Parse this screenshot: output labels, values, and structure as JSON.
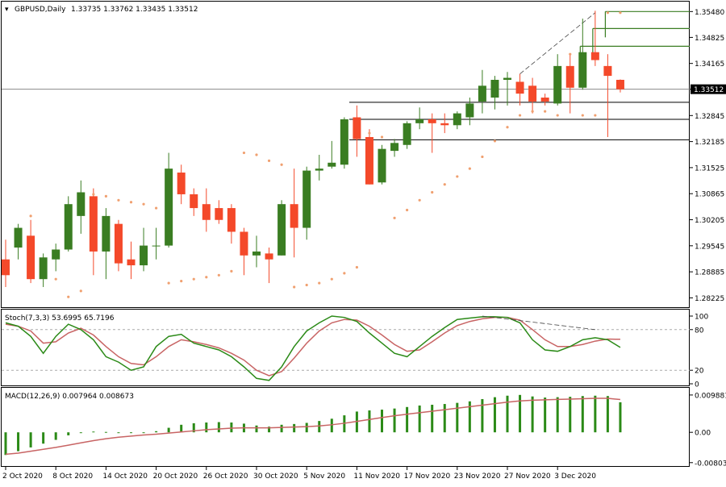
{
  "header": {
    "symbol": "GBPUSD,Daily",
    "ohlc": "1.33735 1.33762 1.33435 1.33512"
  },
  "colors": {
    "bull": "#3a7d22",
    "bear": "#f4492a",
    "sar": "#f0a070",
    "level": "#3a7d22",
    "hline": "#000000",
    "stoch_main": "#2b8a17",
    "stoch_signal": "#c86464",
    "macd_hist": "#2b8a17",
    "macd_signal": "#c86464"
  },
  "chart_data": [
    {
      "type": "candlestick",
      "panel": "price",
      "ylim": [
        1.2805,
        1.3565
      ],
      "yticks": [
        "1.35480",
        "1.34825",
        "1.34165",
        "1.33512",
        "1.32845",
        "1.32185",
        "1.31525",
        "1.30865",
        "1.30205",
        "1.29545",
        "1.28885",
        "1.28225"
      ],
      "current_price": "1.33512",
      "candles": [
        {
          "o": 1.292,
          "h": 1.297,
          "l": 1.285,
          "c": 1.288
        },
        {
          "o": 1.295,
          "h": 1.301,
          "l": 1.292,
          "c": 1.3
        },
        {
          "o": 1.298,
          "h": 1.302,
          "l": 1.286,
          "c": 1.287
        },
        {
          "o": 1.287,
          "h": 1.2935,
          "l": 1.285,
          "c": 1.2925
        },
        {
          "o": 1.292,
          "h": 1.296,
          "l": 1.289,
          "c": 1.2945
        },
        {
          "o": 1.2945,
          "h": 1.308,
          "l": 1.294,
          "c": 1.306
        },
        {
          "o": 1.303,
          "h": 1.312,
          "l": 1.2985,
          "c": 1.309
        },
        {
          "o": 1.308,
          "h": 1.31,
          "l": 1.288,
          "c": 1.294
        },
        {
          "o": 1.294,
          "h": 1.305,
          "l": 1.287,
          "c": 1.303
        },
        {
          "o": 1.301,
          "h": 1.302,
          "l": 1.289,
          "c": 1.291
        },
        {
          "o": 1.292,
          "h": 1.2965,
          "l": 1.287,
          "c": 1.2905
        },
        {
          "o": 1.2905,
          "h": 1.3,
          "l": 1.289,
          "c": 1.2955
        },
        {
          "o": 1.2955,
          "h": 1.3,
          "l": 1.292,
          "c": 1.2955
        },
        {
          "o": 1.2955,
          "h": 1.319,
          "l": 1.295,
          "c": 1.315
        },
        {
          "o": 1.314,
          "h": 1.316,
          "l": 1.306,
          "c": 1.3085
        },
        {
          "o": 1.3085,
          "h": 1.31,
          "l": 1.303,
          "c": 1.305
        },
        {
          "o": 1.306,
          "h": 1.31,
          "l": 1.299,
          "c": 1.302
        },
        {
          "o": 1.305,
          "h": 1.307,
          "l": 1.301,
          "c": 1.302
        },
        {
          "o": 1.305,
          "h": 1.306,
          "l": 1.296,
          "c": 1.299
        },
        {
          "o": 1.299,
          "h": 1.3,
          "l": 1.288,
          "c": 1.293
        },
        {
          "o": 1.293,
          "h": 1.298,
          "l": 1.29,
          "c": 1.294
        },
        {
          "o": 1.2935,
          "h": 1.295,
          "l": 1.286,
          "c": 1.292
        },
        {
          "o": 1.293,
          "h": 1.307,
          "l": 1.293,
          "c": 1.306
        },
        {
          "o": 1.306,
          "h": 1.315,
          "l": 1.2925,
          "c": 1.3
        },
        {
          "o": 1.3,
          "h": 1.3155,
          "l": 1.297,
          "c": 1.3145
        },
        {
          "o": 1.3145,
          "h": 1.3185,
          "l": 1.312,
          "c": 1.315
        },
        {
          "o": 1.3155,
          "h": 1.322,
          "l": 1.315,
          "c": 1.3165
        },
        {
          "o": 1.316,
          "h": 1.328,
          "l": 1.315,
          "c": 1.3275
        },
        {
          "o": 1.328,
          "h": 1.331,
          "l": 1.318,
          "c": 1.3225
        },
        {
          "o": 1.323,
          "h": 1.325,
          "l": 1.311,
          "c": 1.311
        },
        {
          "o": 1.3115,
          "h": 1.321,
          "l": 1.311,
          "c": 1.32
        },
        {
          "o": 1.3195,
          "h": 1.3225,
          "l": 1.318,
          "c": 1.3215
        },
        {
          "o": 1.321,
          "h": 1.327,
          "l": 1.32,
          "c": 1.3265
        },
        {
          "o": 1.3265,
          "h": 1.3305,
          "l": 1.325,
          "c": 1.3275
        },
        {
          "o": 1.3275,
          "h": 1.329,
          "l": 1.319,
          "c": 1.3265
        },
        {
          "o": 1.3265,
          "h": 1.329,
          "l": 1.324,
          "c": 1.326
        },
        {
          "o": 1.326,
          "h": 1.3295,
          "l": 1.325,
          "c": 1.329
        },
        {
          "o": 1.328,
          "h": 1.333,
          "l": 1.326,
          "c": 1.3315
        },
        {
          "o": 1.332,
          "h": 1.34,
          "l": 1.329,
          "c": 1.336
        },
        {
          "o": 1.333,
          "h": 1.3385,
          "l": 1.33,
          "c": 1.3375
        },
        {
          "o": 1.3375,
          "h": 1.3395,
          "l": 1.331,
          "c": 1.338
        },
        {
          "o": 1.337,
          "h": 1.339,
          "l": 1.331,
          "c": 1.334
        },
        {
          "o": 1.336,
          "h": 1.338,
          "l": 1.329,
          "c": 1.332
        },
        {
          "o": 1.333,
          "h": 1.334,
          "l": 1.331,
          "c": 1.332
        },
        {
          "o": 1.3315,
          "h": 1.344,
          "l": 1.331,
          "c": 1.341
        },
        {
          "o": 1.341,
          "h": 1.344,
          "l": 1.329,
          "c": 1.3355
        },
        {
          "o": 1.3355,
          "h": 1.353,
          "l": 1.335,
          "c": 1.3445
        },
        {
          "o": 1.3445,
          "h": 1.355,
          "l": 1.341,
          "c": 1.3425
        },
        {
          "o": 1.341,
          "h": 1.344,
          "l": 1.323,
          "c": 1.3385
        },
        {
          "o": 1.3375,
          "h": 1.3376,
          "l": 1.3343,
          "c": 1.3351
        }
      ],
      "sar": [
        {
          "i": 2,
          "v": 1.303
        },
        {
          "i": 4,
          "v": 1.287
        },
        {
          "i": 5,
          "v": 1.2825
        },
        {
          "i": 6,
          "v": 1.284
        },
        {
          "i": 7,
          "v": 1.3085
        },
        {
          "i": 8,
          "v": 1.308
        },
        {
          "i": 9,
          "v": 1.307
        },
        {
          "i": 10,
          "v": 1.3065
        },
        {
          "i": 11,
          "v": 1.306
        },
        {
          "i": 12,
          "v": 1.305
        },
        {
          "i": 13,
          "v": 1.286
        },
        {
          "i": 14,
          "v": 1.2865
        },
        {
          "i": 15,
          "v": 1.287
        },
        {
          "i": 16,
          "v": 1.2875
        },
        {
          "i": 17,
          "v": 1.288
        },
        {
          "i": 18,
          "v": 1.289
        },
        {
          "i": 19,
          "v": 1.319
        },
        {
          "i": 20,
          "v": 1.3185
        },
        {
          "i": 21,
          "v": 1.317
        },
        {
          "i": 22,
          "v": 1.316
        },
        {
          "i": 23,
          "v": 1.285
        },
        {
          "i": 24,
          "v": 1.2855
        },
        {
          "i": 25,
          "v": 1.286
        },
        {
          "i": 26,
          "v": 1.287
        },
        {
          "i": 27,
          "v": 1.2885
        },
        {
          "i": 28,
          "v": 1.29
        },
        {
          "i": 29,
          "v": 1.324
        },
        {
          "i": 30,
          "v": 1.323
        },
        {
          "i": 31,
          "v": 1.3025
        },
        {
          "i": 32,
          "v": 1.3045
        },
        {
          "i": 33,
          "v": 1.307
        },
        {
          "i": 34,
          "v": 1.309
        },
        {
          "i": 35,
          "v": 1.311
        },
        {
          "i": 36,
          "v": 1.313
        },
        {
          "i": 37,
          "v": 1.315
        },
        {
          "i": 38,
          "v": 1.318
        },
        {
          "i": 39,
          "v": 1.322
        },
        {
          "i": 40,
          "v": 1.3255
        },
        {
          "i": 41,
          "v": 1.3285
        },
        {
          "i": 42,
          "v": 1.3295
        },
        {
          "i": 43,
          "v": 1.3295
        },
        {
          "i": 44,
          "v": 1.3285
        },
        {
          "i": 45,
          "v": 1.344
        },
        {
          "i": 46,
          "v": 1.3285
        },
        {
          "i": 47,
          "v": 1.3285
        },
        {
          "i": 48,
          "v": 1.3545
        },
        {
          "i": 49,
          "v": 1.3545
        }
      ],
      "hlines": [
        1.3318,
        1.3275,
        1.3223
      ],
      "green_levels": [
        {
          "start": 48,
          "value": 1.3548
        },
        {
          "start": 47,
          "value": 1.3505
        },
        {
          "start": 46,
          "value": 1.346
        }
      ],
      "trendline": {
        "from": {
          "i": 41,
          "v": 1.339
        },
        "to": {
          "i": 47,
          "v": 1.3545
        }
      }
    },
    {
      "type": "line",
      "panel": "stochastic",
      "label": "Stoch(7,3,3) 53.6995 65.7196",
      "ylim": [
        0,
        100
      ],
      "yticks": [
        "100",
        "80",
        "20",
        "0"
      ],
      "levels": [
        80,
        20
      ],
      "series": [
        {
          "values": [
            90,
            85,
            70,
            45,
            70,
            88,
            80,
            65,
            40,
            32,
            20,
            25,
            55,
            70,
            73,
            60,
            55,
            50,
            40,
            25,
            8,
            5,
            25,
            55,
            78,
            90,
            100,
            98,
            92,
            75,
            60,
            45,
            40,
            55,
            70,
            83,
            95,
            97,
            99,
            99,
            98,
            90,
            65,
            50,
            48,
            55,
            65,
            68,
            65,
            53.7
          ]
        },
        {
          "values": [
            88,
            85,
            78,
            60,
            62,
            75,
            82,
            72,
            55,
            40,
            30,
            28,
            40,
            55,
            65,
            62,
            58,
            53,
            45,
            35,
            20,
            12,
            18,
            38,
            60,
            78,
            90,
            95,
            94,
            85,
            72,
            58,
            48,
            50,
            62,
            75,
            86,
            92,
            96,
            98,
            98,
            94,
            80,
            65,
            55,
            55,
            58,
            63,
            66,
            65.7
          ]
        }
      ]
    },
    {
      "type": "bar",
      "panel": "macd",
      "label": "MACD(12,26,9) 0.007964 0.008673",
      "ylim": [
        -0.0085,
        0.0105
      ],
      "yticks": [
        "0.009881",
        "0.00",
        "-0.00803"
      ],
      "series": [
        {
          "values": [
            -0.006,
            -0.005,
            -0.004,
            -0.003,
            -0.002,
            -0.0008,
            0.0,
            0.0002,
            0.0001,
            0.0,
            -0.0001,
            0.0,
            0.0003,
            0.0012,
            0.002,
            0.0024,
            0.0026,
            0.0027,
            0.0026,
            0.0023,
            0.0018,
            0.0015,
            0.002,
            0.0022,
            0.0025,
            0.003,
            0.0036,
            0.0045,
            0.0055,
            0.0058,
            0.006,
            0.0063,
            0.0067,
            0.0071,
            0.0073,
            0.0075,
            0.0078,
            0.0082,
            0.0088,
            0.0093,
            0.0097,
            0.0099,
            0.0095,
            0.0092,
            0.0093,
            0.0094,
            0.0096,
            0.0097,
            0.0096,
            0.007964
          ]
        },
        {
          "values": [
            -0.0058,
            -0.0055,
            -0.005,
            -0.0045,
            -0.004,
            -0.0034,
            -0.0028,
            -0.0022,
            -0.0017,
            -0.0013,
            -0.001,
            -0.0007,
            -0.0005,
            -0.0002,
            0.0001,
            0.0004,
            0.0007,
            0.0009,
            0.0011,
            0.0012,
            0.0012,
            0.0012,
            0.0013,
            0.0014,
            0.0015,
            0.0017,
            0.002,
            0.0024,
            0.0029,
            0.0034,
            0.0039,
            0.0044,
            0.0048,
            0.0052,
            0.0056,
            0.006,
            0.0064,
            0.0068,
            0.0072,
            0.0076,
            0.008,
            0.0083,
            0.0085,
            0.0086,
            0.0087,
            0.0088,
            0.0089,
            0.009,
            0.009,
            0.008673
          ]
        }
      ]
    }
  ],
  "xaxis": {
    "labels": [
      {
        "i": 0,
        "text": "2 Oct 2020"
      },
      {
        "i": 4,
        "text": "8 Oct 2020"
      },
      {
        "i": 8,
        "text": "14 Oct 2020"
      },
      {
        "i": 12,
        "text": "20 Oct 2020"
      },
      {
        "i": 16,
        "text": "26 Oct 2020"
      },
      {
        "i": 20,
        "text": "30 Oct 2020"
      },
      {
        "i": 24,
        "text": "5 Nov 2020"
      },
      {
        "i": 28,
        "text": "11 Nov 2020"
      },
      {
        "i": 32,
        "text": "17 Nov 2020"
      },
      {
        "i": 36,
        "text": "23 Nov 2020"
      },
      {
        "i": 40,
        "text": "27 Nov 2020"
      },
      {
        "i": 44,
        "text": "3 Dec 2020"
      }
    ]
  }
}
